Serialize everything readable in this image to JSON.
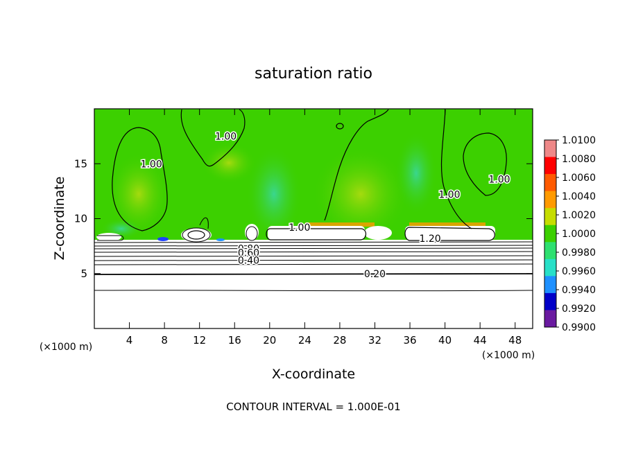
{
  "chart_data": {
    "type": "heatmap",
    "title": "saturation ratio",
    "xlabel": "X-coordinate",
    "ylabel": "Z-coordinate",
    "x_unit_left": "(×1000 m)",
    "x_unit_right": "(×1000 m)",
    "footer": "CONTOUR INTERVAL = 1.000E-01",
    "xlim": [
      0,
      50
    ],
    "ylim": [
      0,
      20
    ],
    "x_ticks": [
      4,
      8,
      12,
      16,
      20,
      24,
      28,
      32,
      36,
      40,
      44,
      48
    ],
    "x_tick_labels": [
      "4",
      "8",
      "12",
      "16",
      "20",
      "24",
      "28",
      "32",
      "36",
      "40",
      "44",
      "48"
    ],
    "y_ticks": [
      5,
      10,
      15
    ],
    "y_tick_labels": [
      "5",
      "10",
      "15"
    ],
    "colorbar": {
      "range": [
        0.99,
        1.01
      ],
      "tick_labels": [
        "1.0100",
        "1.0080",
        "1.0060",
        "1.0040",
        "1.0020",
        "1.0000",
        "0.9980",
        "0.9960",
        "0.9940",
        "0.9920",
        "0.9900"
      ],
      "colors": [
        "#ee8888",
        "#ff0000",
        "#ff5a00",
        "#ff9a00",
        "#c6dd00",
        "#3cd000",
        "#2ee070",
        "#28e0c8",
        "#1e90ff",
        "#0000c8",
        "#6a1aa0"
      ]
    },
    "contour_interval": 0.1,
    "contour_labels": [
      {
        "text": "1.00",
        "x": 6.5,
        "z": 15.0
      },
      {
        "text": "1.00",
        "x": 15.0,
        "z": 17.5
      },
      {
        "text": "1.00",
        "x": 40.5,
        "z": 12.2
      },
      {
        "text": "1.00",
        "x": 46.2,
        "z": 13.6
      },
      {
        "text": "1.00",
        "x": 23.4,
        "z": 9.2
      },
      {
        "text": "1.20",
        "x": 38.3,
        "z": 8.2
      },
      {
        "text": "0.80",
        "x": 17.6,
        "z": 7.3
      },
      {
        "text": "0.60",
        "x": 17.6,
        "z": 6.9
      },
      {
        "text": "0.40",
        "x": 17.6,
        "z": 6.2
      },
      {
        "text": "0.20",
        "x": 32.0,
        "z": 5.0
      }
    ]
  }
}
